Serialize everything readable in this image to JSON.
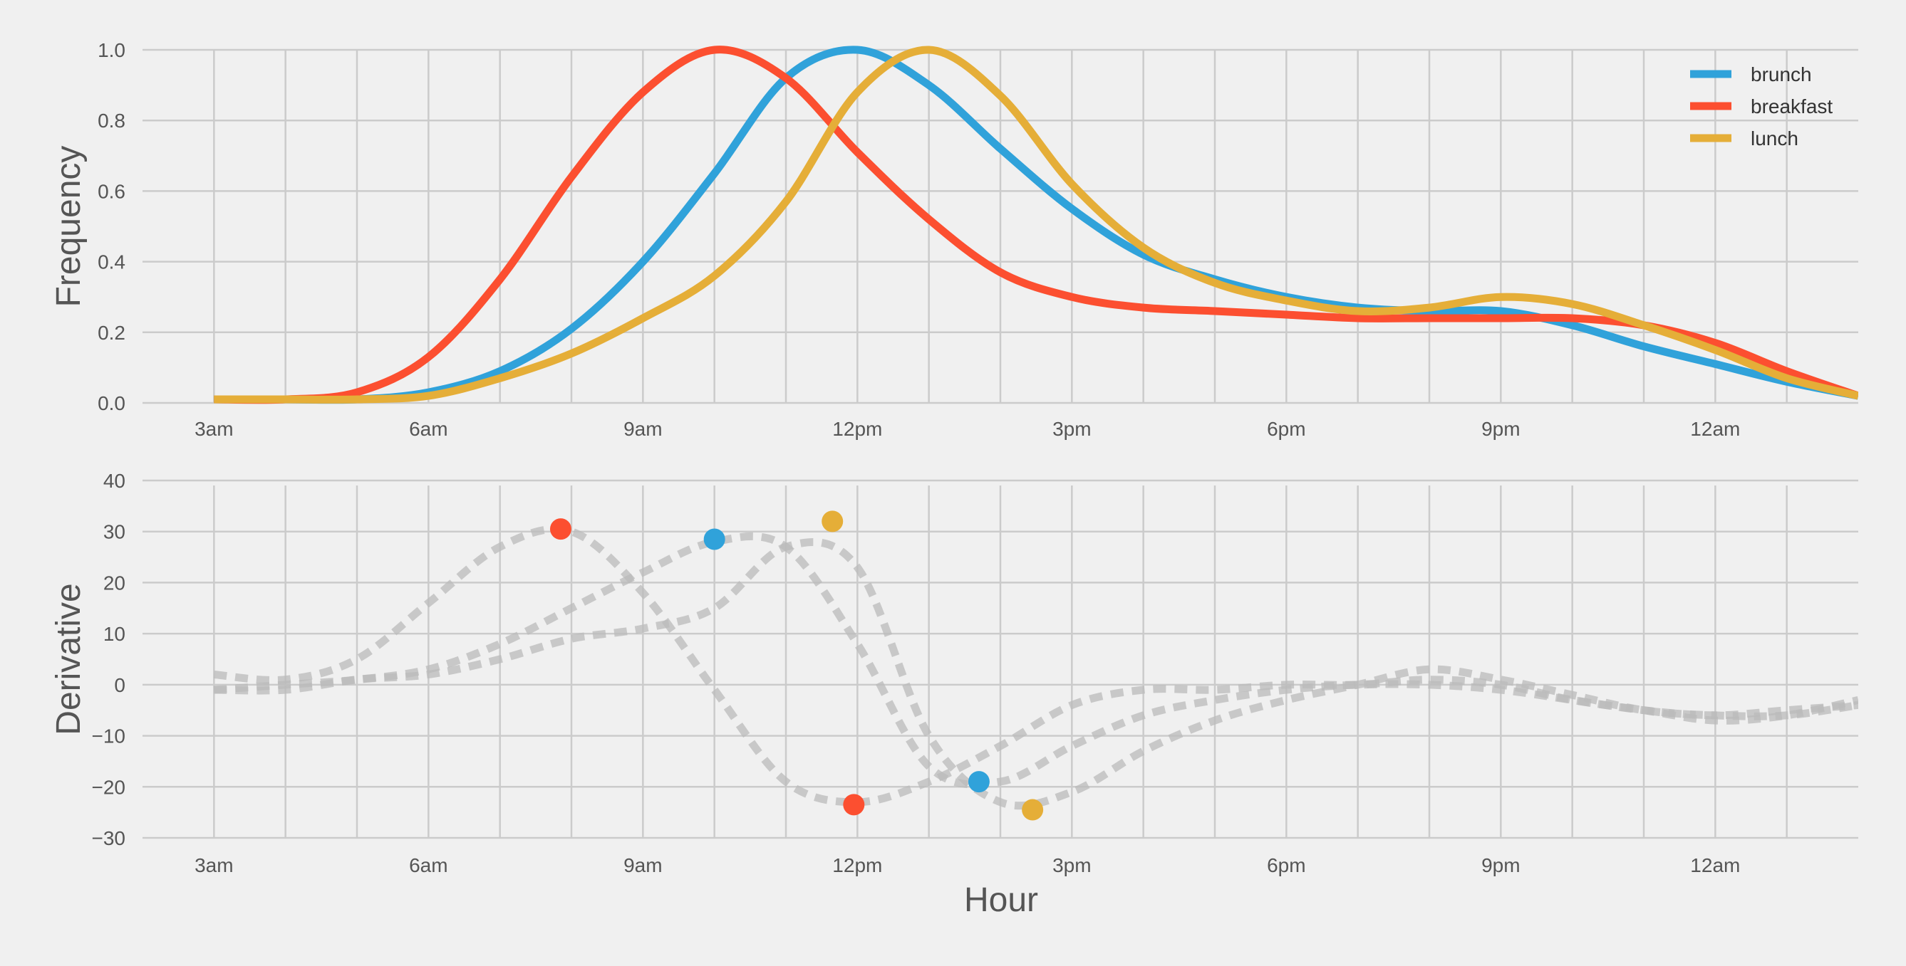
{
  "chart_data": [
    {
      "type": "line",
      "ylabel": "Frequency",
      "xlabel": "",
      "x_ticks": [
        {
          "hour": 3,
          "label": "3am"
        },
        {
          "hour": 6,
          "label": "6am"
        },
        {
          "hour": 9,
          "label": "9am"
        },
        {
          "hour": 12,
          "label": "12pm"
        },
        {
          "hour": 15,
          "label": "3pm"
        },
        {
          "hour": 18,
          "label": "6pm"
        },
        {
          "hour": 21,
          "label": "9pm"
        },
        {
          "hour": 24,
          "label": "12am"
        }
      ],
      "xlim": [
        2,
        26
      ],
      "ylim": [
        0,
        1.0
      ],
      "yticks": [
        "0.0",
        "0.2",
        "0.4",
        "0.6",
        "0.8",
        "1.0"
      ],
      "grid": true,
      "legend": "top-right",
      "series": [
        {
          "name": "brunch",
          "color": "#30a2da",
          "x": [
            3,
            4,
            5,
            6,
            7,
            8,
            9,
            10,
            11,
            12,
            13,
            14,
            15,
            16,
            17,
            18,
            19,
            20,
            21,
            22,
            23,
            24,
            25,
            26
          ],
          "y": [
            0.01,
            0.01,
            0.01,
            0.03,
            0.09,
            0.21,
            0.4,
            0.65,
            0.92,
            1.0,
            0.9,
            0.72,
            0.55,
            0.42,
            0.35,
            0.3,
            0.27,
            0.26,
            0.26,
            0.22,
            0.16,
            0.11,
            0.06,
            0.02
          ]
        },
        {
          "name": "breakfast",
          "color": "#fc4f30",
          "x": [
            3,
            4,
            5,
            6,
            7,
            8,
            9,
            10,
            11,
            12,
            13,
            14,
            15,
            16,
            17,
            18,
            19,
            20,
            21,
            22,
            23,
            24,
            25,
            26
          ],
          "y": [
            0.01,
            0.01,
            0.03,
            0.13,
            0.35,
            0.64,
            0.88,
            1.0,
            0.92,
            0.71,
            0.52,
            0.37,
            0.3,
            0.27,
            0.26,
            0.25,
            0.24,
            0.24,
            0.24,
            0.24,
            0.22,
            0.17,
            0.09,
            0.02
          ]
        },
        {
          "name": "lunch",
          "color": "#e5ae38",
          "x": [
            3,
            4,
            5,
            6,
            7,
            8,
            9,
            10,
            11,
            12,
            13,
            14,
            15,
            16,
            17,
            18,
            19,
            20,
            21,
            22,
            23,
            24,
            25,
            26
          ],
          "y": [
            0.01,
            0.01,
            0.01,
            0.02,
            0.07,
            0.14,
            0.24,
            0.36,
            0.57,
            0.88,
            1.0,
            0.87,
            0.62,
            0.44,
            0.34,
            0.29,
            0.26,
            0.27,
            0.3,
            0.28,
            0.22,
            0.15,
            0.07,
            0.02
          ]
        }
      ]
    },
    {
      "type": "line",
      "ylabel": "Derivative",
      "xlabel": "Hour",
      "x_ticks": [
        {
          "hour": 3,
          "label": "3am"
        },
        {
          "hour": 6,
          "label": "6am"
        },
        {
          "hour": 9,
          "label": "9am"
        },
        {
          "hour": 12,
          "label": "12pm"
        },
        {
          "hour": 15,
          "label": "3pm"
        },
        {
          "hour": 18,
          "label": "6pm"
        },
        {
          "hour": 21,
          "label": "9pm"
        },
        {
          "hour": 24,
          "label": "12am"
        }
      ],
      "xlim": [
        2,
        26
      ],
      "ylim": [
        -30,
        40
      ],
      "yticks": [
        "−30",
        "−20",
        "−10",
        "0",
        "10",
        "20",
        "30",
        "40"
      ],
      "grid": true,
      "line_color": "#bbbbbb",
      "line_style": "dashed",
      "series": [
        {
          "name": "",
          "x": [
            3,
            4,
            5,
            6,
            7,
            8,
            9,
            10,
            11,
            12,
            13,
            14,
            15,
            16,
            17,
            18,
            19,
            20,
            21,
            22,
            23,
            24,
            25,
            26
          ],
          "y": [
            -1,
            0,
            1,
            3,
            8,
            15,
            22,
            28,
            27,
            8,
            -16,
            -19,
            -12,
            -6,
            -3,
            -1,
            0,
            0,
            -1,
            -3,
            -5,
            -6,
            -5,
            -4
          ]
        },
        {
          "name": "",
          "x": [
            3,
            4,
            5,
            6,
            7,
            8,
            9,
            10,
            11,
            12,
            13,
            14,
            15,
            16,
            17,
            18,
            19,
            20,
            21,
            22,
            23,
            24,
            25,
            26
          ],
          "y": [
            2,
            1,
            5,
            16,
            27,
            30,
            18,
            -1,
            -19,
            -23,
            -19,
            -12,
            -4,
            -1,
            -1,
            0,
            0,
            1,
            0,
            -3,
            -5,
            -7,
            -6,
            -3
          ]
        },
        {
          "name": "",
          "x": [
            3,
            4,
            5,
            6,
            7,
            8,
            9,
            10,
            11,
            12,
            13,
            14,
            15,
            16,
            17,
            18,
            19,
            20,
            21,
            22,
            23,
            24,
            25,
            26
          ],
          "y": [
            -1,
            -1,
            1,
            2,
            5,
            9,
            11,
            15,
            27,
            23,
            -10,
            -23,
            -21,
            -13,
            -7,
            -3,
            0,
            3,
            1,
            -2,
            -5,
            -6,
            -6,
            -4
          ]
        }
      ],
      "markers": [
        {
          "color": "#fc4f30",
          "x": 7.85,
          "y": 30.5
        },
        {
          "color": "#30a2da",
          "x": 10.0,
          "y": 28.5
        },
        {
          "color": "#e5ae38",
          "x": 11.65,
          "y": 32
        },
        {
          "color": "#fc4f30",
          "x": 11.95,
          "y": -23.5
        },
        {
          "color": "#30a2da",
          "x": 13.7,
          "y": -19
        },
        {
          "color": "#e5ae38",
          "x": 14.45,
          "y": -24.5
        }
      ]
    }
  ]
}
